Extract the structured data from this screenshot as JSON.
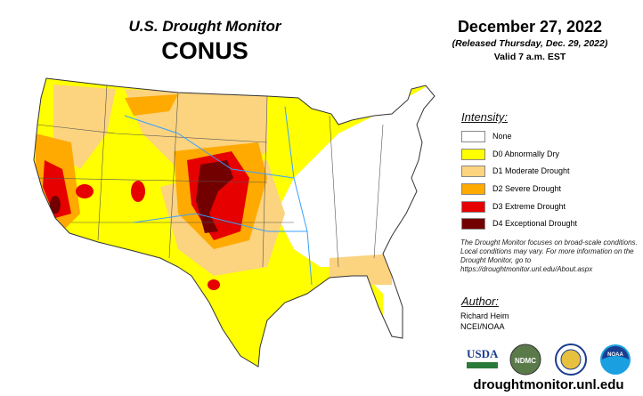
{
  "title": "U.S. Drought Monitor",
  "region": "CONUS",
  "date": "December 27, 2022",
  "released": "(Released Thursday, Dec. 29, 2022)",
  "valid": "Valid 7 a.m. EST",
  "legend": {
    "heading": "Intensity:",
    "items": [
      {
        "label": "None",
        "color": "#ffffff"
      },
      {
        "label": "D0 Abnormally Dry",
        "color": "#ffff00"
      },
      {
        "label": "D1 Moderate Drought",
        "color": "#fcd37f"
      },
      {
        "label": "D2 Severe Drought",
        "color": "#ffaa00"
      },
      {
        "label": "D3 Extreme Drought",
        "color": "#e60000"
      },
      {
        "label": "D4 Exceptional Drought",
        "color": "#730000"
      }
    ]
  },
  "note": "The Drought Monitor focuses on broad-scale conditions. Local conditions may vary. For more information on the Drought Monitor, go to https://droughtmonitor.unl.edu/About.aspx",
  "author": {
    "heading": "Author:",
    "name": "Richard Heim",
    "org": "NCEI/NOAA"
  },
  "logos": [
    "USDA",
    "NDMC",
    "DOC",
    "NOAA"
  ],
  "url": "droughtmonitor.unl.edu"
}
